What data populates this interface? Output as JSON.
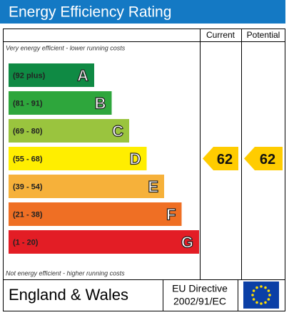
{
  "header": {
    "title": "Energy Efficiency Rating"
  },
  "columns": {
    "current": "Current",
    "potential": "Potential"
  },
  "notes": {
    "top": "Very energy efficient - lower running costs",
    "bottom": "Not energy efficient - higher running costs"
  },
  "bands": [
    {
      "range": "(92 plus)",
      "letter": "A",
      "color": "#0f8a44"
    },
    {
      "range": "(81 - 91)",
      "letter": "B",
      "color": "#2ea63c"
    },
    {
      "range": "(69 - 80)",
      "letter": "C",
      "color": "#9ac43e"
    },
    {
      "range": "(55 - 68)",
      "letter": "D",
      "color": "#ffee00"
    },
    {
      "range": "(39 - 54)",
      "letter": "E",
      "color": "#f6b13a"
    },
    {
      "range": "(21 - 38)",
      "letter": "F",
      "color": "#ef6f24"
    },
    {
      "range": "(1 - 20)",
      "letter": "G",
      "color": "#e31d25"
    }
  ],
  "ratings": {
    "current": 62,
    "potential": 62,
    "band": 3,
    "color": "#ffcc00"
  },
  "footer": {
    "region": "England & Wales",
    "directive_line1": "EU Directive",
    "directive_line2": "2002/91/EC"
  }
}
